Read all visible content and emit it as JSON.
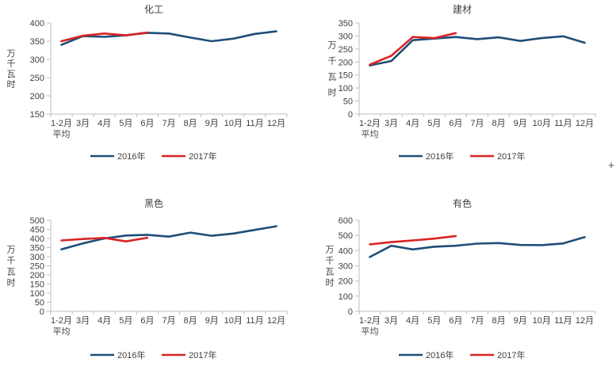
{
  "window": {
    "background": "#ffffff"
  },
  "decorations": {
    "plus_glyph": "+"
  },
  "palette": {
    "series_2016": "#1f4e79",
    "series_2017": "#d92323",
    "axis": "#bfbfbf",
    "text": "#404040"
  },
  "chart_data": [
    {
      "type": "line",
      "title": "化工",
      "ylabel": "万千瓦时",
      "xlabel": "",
      "ylim": [
        150,
        400
      ],
      "ystep": 50,
      "grid": false,
      "legend_position": "bottom",
      "categories": [
        "1-2月",
        "3月",
        "4月",
        "5月",
        "6月",
        "7月",
        "8月",
        "9月",
        "10月",
        "11月",
        "12月"
      ],
      "first_category_sub": "平均",
      "series": [
        {
          "name": "2016年",
          "color": "#1f4e79",
          "values": [
            340,
            364,
            362,
            366,
            373,
            371,
            360,
            350,
            357,
            370,
            377
          ]
        },
        {
          "name": "2017年",
          "color": "#d92323",
          "values": [
            350,
            365,
            371,
            366,
            374
          ]
        }
      ]
    },
    {
      "type": "line",
      "title": "建材",
      "ylabel": "万千瓦时",
      "xlabel": "",
      "ylim": [
        0,
        350
      ],
      "ystep": 50,
      "grid": false,
      "legend_position": "bottom",
      "categories": [
        "1-2月",
        "3月",
        "4月",
        "5月",
        "6月",
        "7月",
        "8月",
        "9月",
        "10月",
        "11月",
        "12月"
      ],
      "first_category_sub": "平均",
      "series": [
        {
          "name": "2016年",
          "color": "#1f4e79",
          "values": [
            187,
            204,
            284,
            290,
            296,
            288,
            295,
            281,
            292,
            299,
            274
          ]
        },
        {
          "name": "2017年",
          "color": "#d92323",
          "values": [
            190,
            224,
            296,
            292,
            311
          ]
        }
      ]
    },
    {
      "type": "line",
      "title": "黑色",
      "ylabel": "万千瓦时",
      "xlabel": "",
      "ylim": [
        0,
        500
      ],
      "ystep": 50,
      "grid": false,
      "legend_position": "bottom",
      "categories": [
        "1-2月",
        "3月",
        "4月",
        "5月",
        "6月",
        "7月",
        "8月",
        "9月",
        "10月",
        "11月",
        "12月"
      ],
      "first_category_sub": "平均",
      "series": [
        {
          "name": "2016年",
          "color": "#1f4e79",
          "values": [
            340,
            373,
            400,
            416,
            420,
            410,
            432,
            415,
            427,
            447,
            467
          ]
        },
        {
          "name": "2017年",
          "color": "#d92323",
          "values": [
            389,
            397,
            403,
            384,
            404
          ]
        }
      ]
    },
    {
      "type": "line",
      "title": "有色",
      "ylabel": "万千瓦时",
      "xlabel": "",
      "ylim": [
        0,
        600
      ],
      "ystep": 100,
      "grid": false,
      "legend_position": "bottom",
      "categories": [
        "1-2月",
        "3月",
        "4月",
        "5月",
        "6月",
        "7月",
        "8月",
        "9月",
        "10月",
        "11月",
        "12月"
      ],
      "first_category_sub": "平均",
      "series": [
        {
          "name": "2016年",
          "color": "#1f4e79",
          "values": [
            358,
            432,
            408,
            426,
            432,
            446,
            450,
            437,
            436,
            447,
            489
          ]
        },
        {
          "name": "2017年",
          "color": "#d92323",
          "values": [
            441,
            456,
            467,
            479,
            496
          ]
        }
      ]
    }
  ]
}
